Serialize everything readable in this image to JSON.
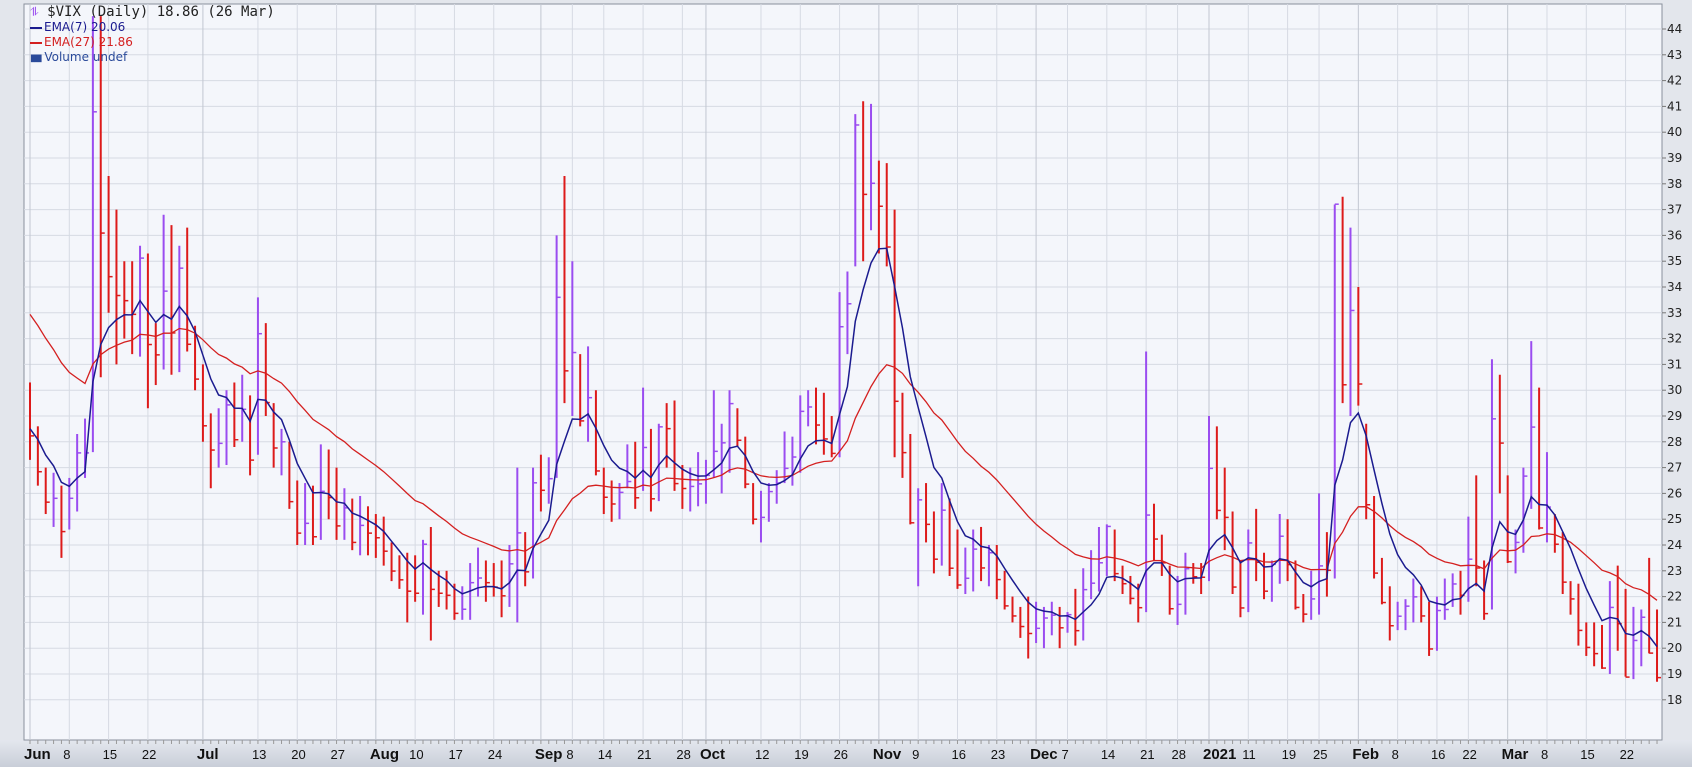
{
  "legend": {
    "title": "$VIX (Daily) 18.86 (26 Mar)",
    "ema7": "EMA(7) 20.06",
    "ema27": "EMA(27) 21.86",
    "volume": "Volume undef",
    "title_icon": "price-bars-icon",
    "volume_icon": "volume-bars-icon"
  },
  "colors": {
    "up": "#9a4cf0",
    "down": "#dd1a1a",
    "ema7": "#1b1b8f",
    "ema27": "#d42020",
    "background": "#f4f6fb",
    "grid": "#d6dae3"
  },
  "chart_data": {
    "type": "ohlc-bar",
    "title": "$VIX (Daily) 18.86 (26 Mar)",
    "ylim": [
      18,
      44
    ],
    "yticks": [
      18,
      19,
      20,
      21,
      22,
      23,
      24,
      25,
      26,
      27,
      28,
      29,
      30,
      31,
      32,
      33,
      34,
      35,
      36,
      37,
      38,
      39,
      40,
      41,
      42,
      43,
      44
    ],
    "y_axis_side": "right",
    "grid": true,
    "legend_placement": "top-left",
    "trading_days": {
      "2020-06": [
        1,
        2,
        3,
        4,
        5,
        8,
        9,
        10,
        11,
        12,
        15,
        16,
        17,
        18,
        19,
        22,
        23,
        24,
        25,
        26,
        29,
        30
      ],
      "2020-07": [
        1,
        2,
        6,
        7,
        8,
        9,
        10,
        13,
        14,
        15,
        16,
        17,
        20,
        21,
        22,
        23,
        24,
        27,
        28,
        29,
        30,
        31
      ],
      "2020-08": [
        3,
        4,
        5,
        6,
        7,
        10,
        11,
        12,
        13,
        14,
        17,
        18,
        19,
        20,
        21,
        24,
        25,
        26,
        27,
        28,
        31
      ],
      "2020-09": [
        1,
        2,
        3,
        4,
        8,
        9,
        10,
        11,
        14,
        15,
        16,
        17,
        18,
        21,
        22,
        23,
        24,
        25,
        28,
        29,
        30
      ],
      "2020-10": [
        1,
        2,
        5,
        6,
        7,
        8,
        9,
        12,
        13,
        14,
        15,
        16,
        19,
        20,
        21,
        22,
        23,
        26,
        27,
        28,
        29,
        30
      ],
      "2020-11": [
        2,
        3,
        4,
        5,
        6,
        9,
        10,
        11,
        12,
        13,
        16,
        17,
        18,
        19,
        20,
        23,
        24,
        25,
        27,
        30
      ],
      "2020-12": [
        1,
        2,
        3,
        4,
        7,
        8,
        9,
        10,
        11,
        14,
        15,
        16,
        17,
        18,
        21,
        22,
        23,
        24,
        28,
        29,
        30,
        31
      ],
      "2021-01": [
        4,
        5,
        6,
        7,
        8,
        11,
        12,
        13,
        14,
        15,
        19,
        20,
        21,
        22,
        25,
        26,
        27,
        28,
        29
      ],
      "2021-02": [
        1,
        2,
        3,
        4,
        5,
        8,
        9,
        10,
        11,
        12,
        16,
        17,
        18,
        19,
        22,
        23,
        24,
        25,
        26
      ],
      "2021-03": [
        1,
        2,
        3,
        4,
        5,
        8,
        9,
        10,
        11,
        12,
        15,
        16,
        17,
        18,
        19,
        22,
        23,
        24,
        25,
        26
      ]
    },
    "close": [
      28.23,
      26.84,
      25.66,
      25.81,
      24.52,
      25.81,
      27.57,
      27.57,
      40.79,
      36.09,
      34.4,
      33.67,
      33.47,
      32.94,
      35.12,
      31.77,
      31.37,
      33.84,
      32.22,
      34.73,
      31.78,
      30.43,
      28.62,
      27.68,
      27.94,
      29.43,
      28.08,
      29.26,
      27.29,
      32.19,
      29.52,
      27.76,
      28.0,
      25.68,
      24.46,
      24.84,
      24.32,
      26.08,
      25.84,
      24.74,
      25.44,
      24.1,
      24.76,
      24.46,
      24.28,
      23.76,
      22.99,
      22.65,
      22.21,
      22.13,
      24.03,
      22.28,
      22.13,
      22.05,
      21.35,
      21.51,
      22.54,
      22.72,
      22.54,
      22.37,
      22.03,
      23.27,
      24.47,
      22.96,
      26.41,
      26.12,
      26.57,
      33.6,
      30.75,
      31.46,
      28.81,
      29.71,
      26.87,
      25.85,
      25.59,
      26.04,
      26.46,
      25.83,
      27.78,
      25.79,
      28.58,
      28.51,
      26.38,
      26.19,
      26.27,
      26.37,
      26.7,
      27.63,
      27.96,
      29.48,
      28.06,
      26.36,
      25.0,
      25.07,
      26.07,
      26.4,
      26.97,
      27.41,
      29.18,
      29.35,
      28.65,
      28.11,
      27.55,
      32.46,
      33.35,
      40.28,
      37.59,
      38.02,
      37.13,
      35.55,
      29.57,
      27.58,
      24.86,
      25.75,
      24.8,
      23.45,
      25.35,
      23.1,
      22.45,
      22.71,
      23.84,
      23.11,
      23.7,
      22.66,
      21.64,
      21.25,
      20.84,
      20.57,
      20.77,
      21.17,
      21.28,
      20.79,
      21.3,
      20.68,
      22.27,
      22.52,
      23.31,
      24.72,
      22.89,
      22.5,
      21.93,
      21.57,
      25.16,
      24.23,
      23.31,
      21.53,
      21.7,
      23.08,
      22.77,
      22.75,
      26.97,
      25.34,
      25.07,
      22.37,
      21.56,
      24.08,
      23.33,
      22.21,
      23.25,
      24.34,
      23.24,
      21.58,
      21.32,
      21.91,
      23.19,
      23.02,
      37.21,
      30.21,
      33.09,
      30.24,
      25.56,
      22.91,
      21.77,
      20.87,
      21.24,
      21.63,
      21.99,
      21.25,
      19.97,
      21.46,
      21.5,
      22.49,
      22.05,
      23.45,
      23.11,
      21.34,
      28.89,
      27.95,
      23.35,
      24.1,
      26.67,
      28.57,
      24.66,
      25.47,
      24.03,
      22.56,
      21.91,
      20.69,
      20.03,
      19.79,
      19.23,
      21.58,
      20.95,
      18.88,
      20.3,
      21.2,
      19.81,
      18.86
    ],
    "high": [
      30.3,
      28.6,
      27.0,
      26.8,
      26.3,
      26.6,
      28.3,
      28.9,
      44.5,
      44.5,
      38.3,
      37.0,
      35.0,
      35.0,
      35.6,
      35.3,
      32.6,
      36.8,
      36.4,
      35.6,
      36.3,
      32.5,
      31.0,
      29.1,
      29.3,
      30.0,
      30.3,
      30.6,
      29.8,
      33.6,
      32.6,
      29.5,
      28.5,
      28.0,
      26.5,
      26.4,
      26.3,
      27.9,
      27.7,
      27.0,
      26.2,
      25.8,
      25.9,
      25.5,
      25.2,
      25.1,
      24.1,
      23.6,
      23.7,
      23.6,
      24.2,
      24.7,
      23.0,
      23.0,
      22.5,
      22.4,
      23.3,
      23.9,
      23.4,
      23.3,
      23.4,
      24.0,
      27.0,
      24.5,
      27.0,
      27.5,
      27.4,
      36.0,
      38.3,
      35.0,
      31.4,
      31.7,
      30.0,
      27.0,
      26.5,
      26.4,
      27.9,
      28.0,
      30.1,
      28.5,
      28.7,
      29.5,
      29.6,
      27.1,
      27.0,
      27.6,
      27.3,
      30.0,
      28.7,
      30.0,
      29.3,
      28.2,
      26.4,
      26.1,
      26.4,
      26.9,
      28.4,
      28.2,
      29.8,
      30.0,
      30.1,
      29.9,
      29.0,
      33.8,
      34.6,
      40.7,
      41.2,
      41.1,
      38.9,
      38.8,
      37.0,
      29.9,
      28.3,
      26.2,
      26.4,
      25.3,
      26.4,
      25.8,
      24.6,
      23.9,
      24.6,
      24.7,
      24.0,
      24.0,
      23.0,
      22.0,
      21.6,
      22.0,
      21.8,
      21.6,
      21.8,
      21.6,
      21.4,
      22.3,
      23.1,
      23.8,
      24.7,
      24.8,
      24.6,
      23.2,
      22.8,
      22.5,
      31.5,
      25.6,
      24.4,
      23.2,
      22.8,
      23.7,
      23.3,
      23.3,
      29.0,
      28.6,
      27.0,
      25.3,
      23.4,
      24.6,
      25.4,
      23.7,
      23.4,
      25.2,
      25.0,
      23.4,
      22.1,
      23.0,
      26.0,
      24.5,
      37.2,
      37.5,
      36.3,
      34.0,
      28.7,
      25.9,
      23.5,
      22.4,
      21.8,
      21.9,
      22.7,
      22.4,
      21.8,
      22.0,
      22.7,
      22.9,
      23.0,
      25.1,
      26.7,
      23.4,
      31.2,
      30.6,
      26.7,
      24.6,
      27.0,
      31.9,
      30.1,
      27.6,
      25.2,
      24.5,
      22.6,
      22.5,
      21.0,
      21.0,
      20.9,
      22.6,
      23.2,
      22.3,
      21.6,
      21.5,
      23.5,
      21.5
    ],
    "low": [
      27.3,
      26.3,
      25.2,
      24.7,
      23.5,
      24.6,
      25.3,
      26.6,
      27.6,
      30.5,
      33.0,
      31.0,
      32.0,
      31.4,
      31.3,
      29.3,
      30.2,
      30.8,
      30.6,
      30.7,
      31.5,
      30.0,
      28.0,
      26.2,
      27.0,
      27.1,
      27.8,
      28.0,
      26.7,
      27.5,
      29.0,
      27.0,
      26.7,
      25.4,
      24.0,
      24.0,
      24.0,
      24.2,
      25.0,
      24.2,
      24.2,
      23.8,
      23.6,
      23.6,
      23.5,
      23.2,
      22.6,
      22.3,
      21.0,
      21.8,
      21.3,
      20.3,
      21.6,
      21.5,
      21.1,
      21.1,
      21.1,
      22.0,
      21.8,
      22.0,
      21.2,
      21.6,
      21.0,
      22.4,
      22.7,
      25.3,
      25.6,
      26.6,
      29.5,
      29.0,
      28.6,
      28.0,
      26.7,
      25.2,
      24.9,
      25.0,
      26.2,
      25.4,
      26.1,
      25.3,
      25.7,
      27.0,
      26.1,
      25.4,
      25.3,
      25.5,
      25.6,
      26.6,
      26.0,
      26.8,
      27.8,
      26.2,
      24.8,
      24.1,
      24.9,
      25.6,
      26.4,
      26.3,
      26.8,
      28.6,
      27.9,
      27.5,
      27.4,
      27.4,
      31.4,
      34.8,
      35.0,
      36.2,
      35.3,
      34.8,
      27.4,
      26.6,
      24.8,
      22.4,
      24.1,
      22.9,
      23.2,
      22.8,
      22.3,
      22.1,
      22.2,
      22.6,
      22.4,
      21.9,
      21.5,
      21.0,
      20.4,
      19.6,
      20.2,
      20.0,
      20.5,
      20.0,
      20.6,
      20.1,
      20.3,
      21.9,
      22.2,
      22.8,
      22.6,
      22.1,
      21.7,
      21.0,
      21.4,
      23.4,
      22.8,
      21.3,
      20.9,
      21.3,
      22.5,
      22.1,
      22.6,
      25.0,
      23.8,
      22.1,
      21.2,
      21.4,
      22.6,
      21.9,
      21.8,
      22.5,
      22.6,
      21.5,
      21.0,
      21.1,
      21.3,
      22.0,
      22.7,
      29.5,
      29.0,
      29.4,
      25.0,
      22.7,
      21.7,
      20.3,
      20.7,
      20.7,
      21.0,
      21.0,
      19.7,
      19.9,
      21.1,
      21.6,
      21.3,
      21.8,
      22.4,
      21.1,
      21.5,
      26.0,
      23.3,
      22.9,
      23.7,
      25.4,
      24.6,
      24.1,
      23.7,
      22.1,
      21.3,
      20.1,
      19.7,
      19.3,
      19.2,
      19.0,
      19.9,
      18.9,
      18.8,
      19.3,
      19.8,
      18.7
    ],
    "series": [
      {
        "name": "EMA(7)",
        "last": 20.06
      },
      {
        "name": "EMA(27)",
        "last": 21.86
      }
    ],
    "xticks": [
      {
        "label": "Jun",
        "date": "2020-06-01",
        "major": true
      },
      {
        "label": "8",
        "date": "2020-06-08"
      },
      {
        "label": "15",
        "date": "2020-06-15"
      },
      {
        "label": "22",
        "date": "2020-06-22"
      },
      {
        "label": "Jul",
        "date": "2020-07-01",
        "major": true
      },
      {
        "label": "13",
        "date": "2020-07-13"
      },
      {
        "label": "20",
        "date": "2020-07-20"
      },
      {
        "label": "27",
        "date": "2020-07-27"
      },
      {
        "label": "Aug",
        "date": "2020-08-03",
        "major": true
      },
      {
        "label": "10",
        "date": "2020-08-10"
      },
      {
        "label": "17",
        "date": "2020-08-17"
      },
      {
        "label": "24",
        "date": "2020-08-24"
      },
      {
        "label": "Sep",
        "date": "2020-09-01",
        "major": true
      },
      {
        "label": "8",
        "date": "2020-09-08"
      },
      {
        "label": "14",
        "date": "2020-09-14"
      },
      {
        "label": "21",
        "date": "2020-09-21"
      },
      {
        "label": "28",
        "date": "2020-09-28"
      },
      {
        "label": "Oct",
        "date": "2020-10-01",
        "major": true
      },
      {
        "label": "12",
        "date": "2020-10-12"
      },
      {
        "label": "19",
        "date": "2020-10-19"
      },
      {
        "label": "26",
        "date": "2020-10-26"
      },
      {
        "label": "Nov",
        "date": "2020-11-02",
        "major": true
      },
      {
        "label": "9",
        "date": "2020-11-09"
      },
      {
        "label": "16",
        "date": "2020-11-16"
      },
      {
        "label": "23",
        "date": "2020-11-23"
      },
      {
        "label": "Dec",
        "date": "2020-12-01",
        "major": true
      },
      {
        "label": "7",
        "date": "2020-12-07"
      },
      {
        "label": "14",
        "date": "2020-12-14"
      },
      {
        "label": "21",
        "date": "2020-12-21"
      },
      {
        "label": "28",
        "date": "2020-12-28"
      },
      {
        "label": "2021",
        "date": "2021-01-04",
        "major": true
      },
      {
        "label": "11",
        "date": "2021-01-11"
      },
      {
        "label": "19",
        "date": "2021-01-19"
      },
      {
        "label": "25",
        "date": "2021-01-25"
      },
      {
        "label": "Feb",
        "date": "2021-02-01",
        "major": true
      },
      {
        "label": "8",
        "date": "2021-02-08"
      },
      {
        "label": "16",
        "date": "2021-02-16"
      },
      {
        "label": "22",
        "date": "2021-02-22"
      },
      {
        "label": "Mar",
        "date": "2021-03-01",
        "major": true
      },
      {
        "label": "8",
        "date": "2021-03-08"
      },
      {
        "label": "15",
        "date": "2021-03-15"
      },
      {
        "label": "22",
        "date": "2021-03-22"
      }
    ]
  }
}
